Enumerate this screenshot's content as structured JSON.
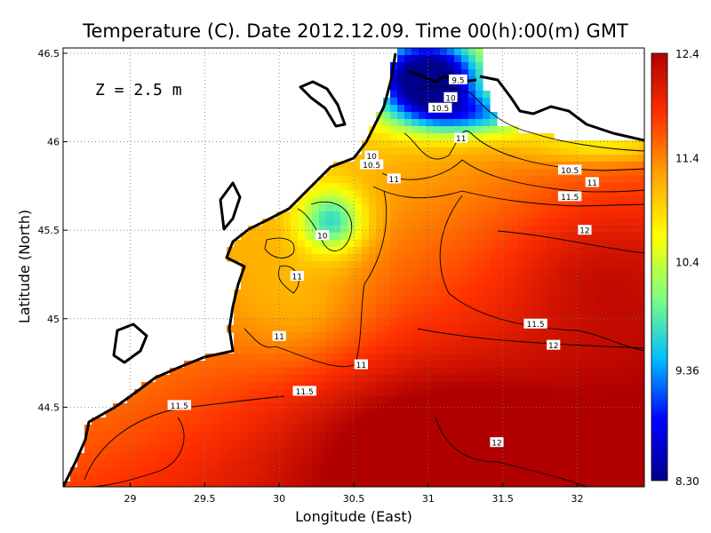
{
  "chart_data": {
    "type": "heatmap",
    "title": "Temperature (C). Date 2012.12.09. Time 00(h):00(m) GMT",
    "annotation": "Z = 2.5 m",
    "xlabel": "Longitude (East)",
    "ylabel": "Latitude (North)",
    "xlim": [
      28.55,
      32.45
    ],
    "ylim": [
      44.05,
      46.53
    ],
    "x_ticks": [
      "29",
      "29.5",
      "30",
      "30.5",
      "31",
      "31.5",
      "32"
    ],
    "x_tick_values": [
      29,
      29.5,
      30,
      30.5,
      31,
      31.5,
      32
    ],
    "y_ticks": [
      "44.5",
      "45",
      "45.5",
      "46",
      "46.5"
    ],
    "y_tick_values": [
      44.5,
      45,
      45.5,
      46,
      46.5
    ],
    "grid": true,
    "colorbar": {
      "min": 8.3,
      "max": 12.4,
      "tick_labels": [
        "12.4",
        "11.4",
        "10.4",
        "9.36",
        "8.30"
      ],
      "tick_values": [
        12.4,
        11.4,
        10.4,
        9.36,
        8.3
      ],
      "colors": [
        "#00008b",
        "#0000ff",
        "#00bfff",
        "#7fff7f",
        "#ffff00",
        "#ffa500",
        "#ff3000",
        "#b00000"
      ]
    },
    "contour_labels": [
      {
        "text": "9.5",
        "lon": 31.2,
        "lat": 46.35
      },
      {
        "text": "10",
        "lon": 31.15,
        "lat": 46.25
      },
      {
        "text": "10.5",
        "lon": 31.08,
        "lat": 46.19
      },
      {
        "text": "11",
        "lon": 31.22,
        "lat": 46.02
      },
      {
        "text": "10",
        "lon": 30.62,
        "lat": 45.92
      },
      {
        "text": "10.5",
        "lon": 30.62,
        "lat": 45.87
      },
      {
        "text": "11",
        "lon": 30.77,
        "lat": 45.79
      },
      {
        "text": "10.5",
        "lon": 31.95,
        "lat": 45.84
      },
      {
        "text": "11",
        "lon": 32.1,
        "lat": 45.77
      },
      {
        "text": "11.5",
        "lon": 31.95,
        "lat": 45.69
      },
      {
        "text": "12",
        "lon": 32.05,
        "lat": 45.5
      },
      {
        "text": "10",
        "lon": 30.29,
        "lat": 45.47
      },
      {
        "text": "11",
        "lon": 30.12,
        "lat": 45.24
      },
      {
        "text": "11",
        "lon": 30.0,
        "lat": 44.9
      },
      {
        "text": "11.5",
        "lon": 31.72,
        "lat": 44.97
      },
      {
        "text": "12",
        "lon": 31.84,
        "lat": 44.85
      },
      {
        "text": "11",
        "lon": 30.55,
        "lat": 44.74
      },
      {
        "text": "11.5",
        "lon": 30.17,
        "lat": 44.59
      },
      {
        "text": "11.5",
        "lon": 29.33,
        "lat": 44.51
      },
      {
        "text": "12",
        "lon": 31.46,
        "lat": 44.3
      }
    ],
    "approx_field_notes": "Cold water (8.3-10.5 C) near the northern shelf (~31 E, 46.1-46.5 N) and a cool tongue near 30.3 E, 45.5 N; mid-values (10.5-11.5 C, yellow) over the western shelf; warm (11.5-12.4 C, red) in the south and east."
  }
}
